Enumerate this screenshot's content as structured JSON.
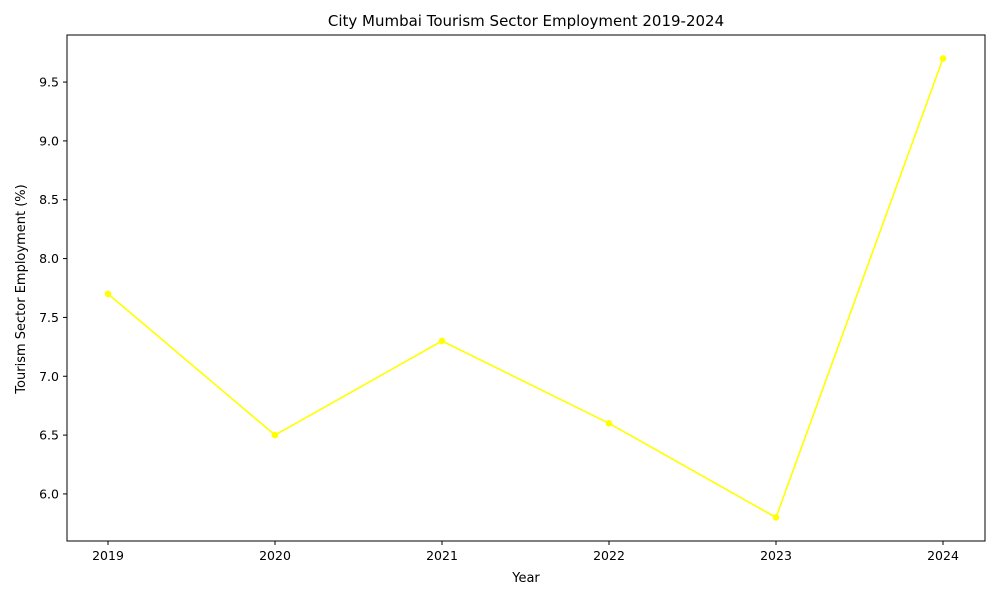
{
  "chart_data": {
    "type": "line",
    "title": "City Mumbai Tourism Sector Employment 2019-2024",
    "xlabel": "Year",
    "ylabel": "Tourism Sector Employment (%)",
    "x": [
      "2019",
      "2020",
      "2021",
      "2022",
      "2023",
      "2024"
    ],
    "series": [
      {
        "values": [
          7.7,
          6.5,
          7.3,
          6.6,
          5.8,
          9.7
        ],
        "color": "#ffff00"
      }
    ],
    "ylim": [
      5.6,
      9.9
    ],
    "yticks": [
      "6.0",
      "6.5",
      "7.0",
      "7.5",
      "8.0",
      "8.5",
      "9.0",
      "9.5"
    ],
    "grid": false,
    "legend": "none",
    "marker": "circle"
  }
}
